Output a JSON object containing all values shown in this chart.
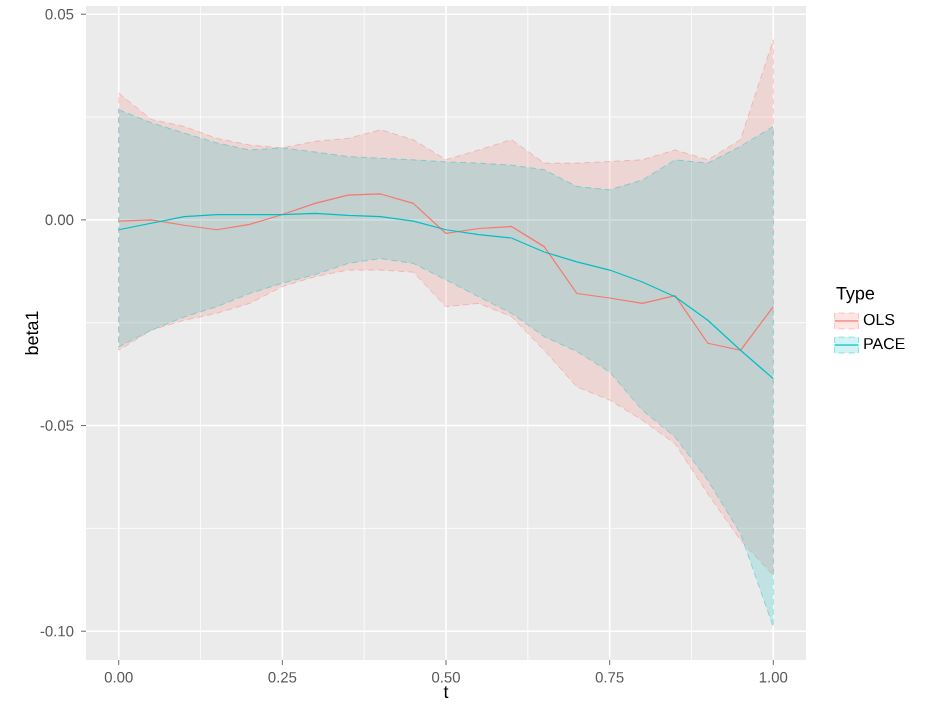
{
  "chart_data": {
    "type": "line",
    "xlabel": "t",
    "ylabel": "beta1",
    "legend_title": "Type",
    "legend": "right",
    "grid": true,
    "xlim": [
      -0.05,
      1.05
    ],
    "ylim": [
      -0.107,
      0.052
    ],
    "xticks": [
      {
        "value": 0,
        "label": "0.00"
      },
      {
        "value": 0.25,
        "label": "0.25"
      },
      {
        "value": 0.5,
        "label": "0.50"
      },
      {
        "value": 0.75,
        "label": "0.75"
      },
      {
        "value": 1,
        "label": "1.00"
      }
    ],
    "yticks": [
      {
        "value": -0.1,
        "label": "-0.10"
      },
      {
        "value": -0.05,
        "label": "-0.05"
      },
      {
        "value": 0,
        "label": "0.00"
      },
      {
        "value": 0.05,
        "label": "0.05"
      }
    ],
    "x": [
      0,
      0.05,
      0.1,
      0.15,
      0.2,
      0.25,
      0.3,
      0.35,
      0.4,
      0.45,
      0.5,
      0.55,
      0.6,
      0.65,
      0.7,
      0.75,
      0.8,
      0.85,
      0.9,
      0.95,
      1
    ],
    "series": [
      {
        "name": "OLS",
        "color": "#f8766d",
        "values": [
          -0.0003,
          0.0,
          -0.0013,
          -0.0024,
          -0.0011,
          0.0013,
          0.004,
          0.006,
          0.0063,
          0.004,
          -0.0033,
          -0.0021,
          -0.0016,
          -0.0065,
          -0.0179,
          -0.019,
          -0.0203,
          -0.0184,
          -0.03,
          -0.0317,
          -0.0211
        ],
        "upper": [
          0.0308,
          0.0244,
          0.0227,
          0.0198,
          0.0182,
          0.0175,
          0.0191,
          0.0198,
          0.0219,
          0.0195,
          0.0146,
          0.017,
          0.0195,
          0.0138,
          0.0138,
          0.0142,
          0.0146,
          0.017,
          0.0146,
          0.0195,
          0.0438
        ],
        "lower": [
          -0.0317,
          -0.0268,
          -0.0244,
          -0.0227,
          -0.0203,
          -0.0162,
          -0.0138,
          -0.0122,
          -0.0122,
          -0.0127,
          -0.0211,
          -0.0203,
          -0.0235,
          -0.0317,
          -0.0406,
          -0.0438,
          -0.0487,
          -0.0544,
          -0.0666,
          -0.0779,
          -0.0864
        ]
      },
      {
        "name": "PACE",
        "color": "#00bfc4",
        "values": [
          -0.0024,
          -0.0008,
          0.0008,
          0.0013,
          0.0013,
          0.0013,
          0.0016,
          0.0011,
          0.0008,
          -0.0003,
          -0.0024,
          -0.0036,
          -0.0044,
          -0.0078,
          -0.0102,
          -0.0122,
          -0.0151,
          -0.0187,
          -0.0244,
          -0.0317,
          -0.0386
        ],
        "upper": [
          0.0268,
          0.0236,
          0.0211,
          0.0187,
          0.017,
          0.0175,
          0.0165,
          0.0154,
          0.015,
          0.0146,
          0.0141,
          0.0138,
          0.0133,
          0.0122,
          0.0081,
          0.0073,
          0.0097,
          0.0146,
          0.0138,
          0.0179,
          0.0227
        ],
        "lower": [
          -0.0309,
          -0.0268,
          -0.0236,
          -0.0211,
          -0.0179,
          -0.0154,
          -0.0133,
          -0.0106,
          -0.0094,
          -0.0106,
          -0.0146,
          -0.0187,
          -0.0227,
          -0.0284,
          -0.032,
          -0.037,
          -0.0463,
          -0.0528,
          -0.0633,
          -0.0763,
          -0.099
        ]
      }
    ]
  }
}
